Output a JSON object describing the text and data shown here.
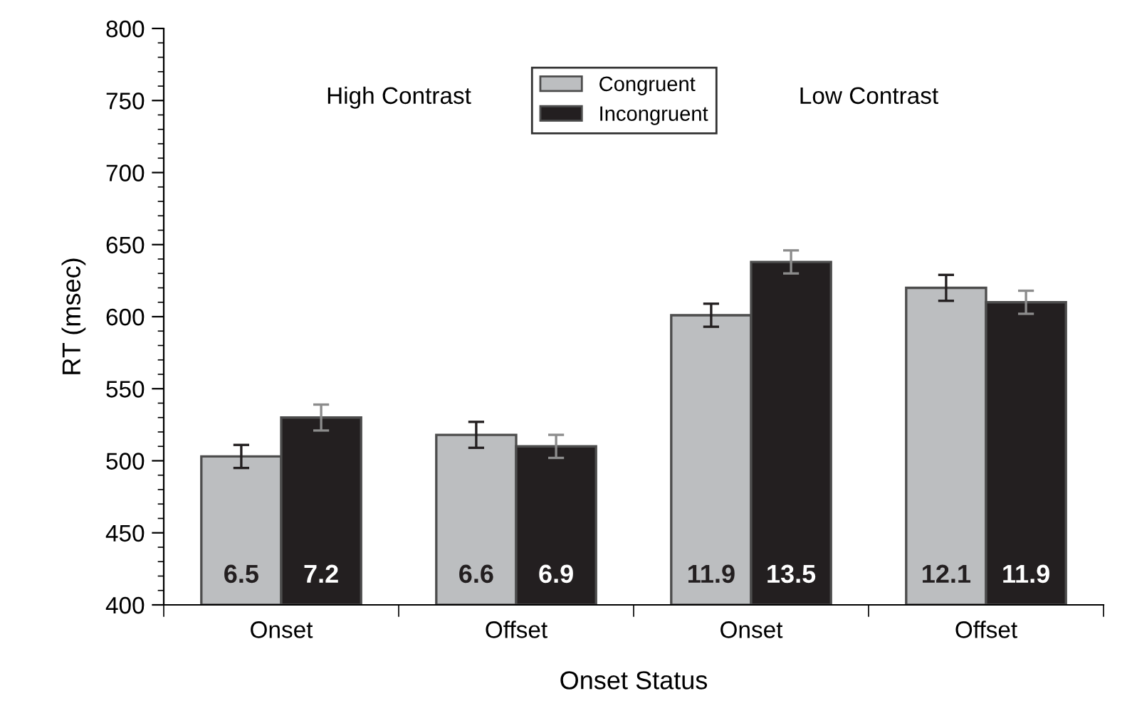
{
  "chart_data": {
    "type": "bar",
    "xlabel": "Onset Status",
    "ylabel": "RT (msec)",
    "categories": [
      "Onset",
      "Offset",
      "Onset",
      "Offset"
    ],
    "series": [
      {
        "name": "Congruent",
        "color": "#bcbec0",
        "values": [
          503,
          518,
          601,
          620
        ],
        "errors": [
          8,
          9,
          8,
          9
        ]
      },
      {
        "name": "Incongruent",
        "color": "#231f20",
        "values": [
          530,
          510,
          638,
          610
        ],
        "errors": [
          9,
          8,
          8,
          8
        ]
      }
    ],
    "annotations": [
      "High Contrast",
      "Low Contrast",
      "6.5",
      "6.6",
      "11.9",
      "12.1",
      "7.2",
      "6.9",
      "13.5",
      "11.9"
    ],
    "ylim": [
      400,
      800
    ],
    "yticks": [
      400,
      450,
      500,
      550,
      600,
      650,
      700,
      750,
      800
    ],
    "legend": "top",
    "grid": false
  }
}
